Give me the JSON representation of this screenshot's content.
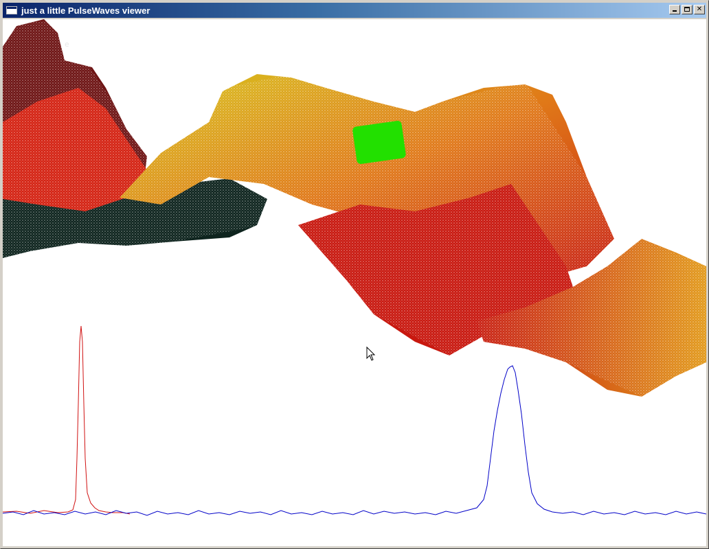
{
  "window": {
    "title": "just a little PulseWaves viewer",
    "caption_buttons": {
      "minimize": "",
      "maximize": "",
      "close": "✕"
    }
  },
  "viewer": {
    "background": "#ffffff",
    "overlay_text": "e",
    "point_cloud_colors": {
      "dark": "#0e241e",
      "deep_red": "#7a1212",
      "red": "#d42212",
      "orange": "#e07818",
      "yellow": "#d8c820",
      "selection": "#22e000"
    },
    "waveform_colors": {
      "outgoing": "#d01010",
      "return": "#0000c8"
    },
    "icons": {
      "app": "window-app-icon",
      "cursor": "mouse-pointer-icon"
    }
  }
}
